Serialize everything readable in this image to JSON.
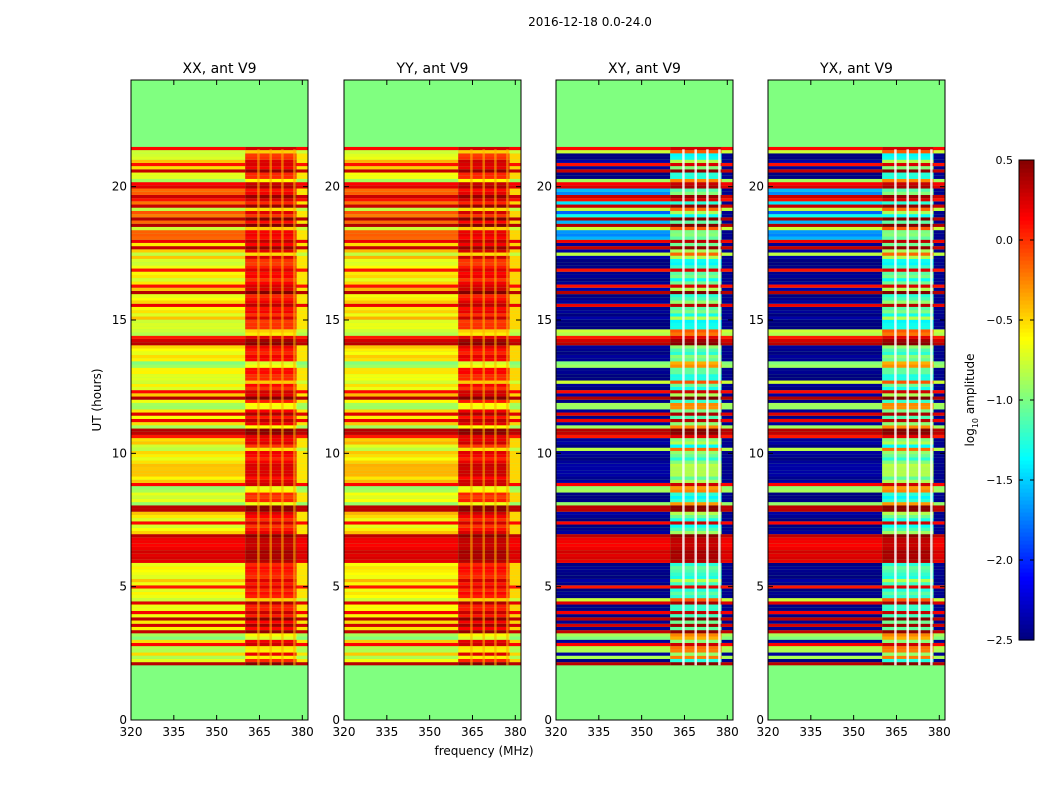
{
  "figure_title": "2016-12-18 0.0-24.0",
  "colorbar": {
    "label_main": "log",
    "label_sub": "10",
    "label_tail": " amplitude",
    "range": [
      -2.5,
      0.5
    ],
    "ticks": [
      0.5,
      0.0,
      -0.5,
      -1.0,
      -1.5,
      -2.0,
      -2.5
    ],
    "tick_labels": [
      "0.5",
      "0.0",
      "−0.5",
      "−1.0",
      "−1.5",
      "−2.0",
      "−2.5"
    ],
    "colormap": "jet"
  },
  "chart_data": {
    "type": "heatmap",
    "xlabel": "frequency (MHz)",
    "ylabel": "UT (hours)",
    "xlim": [
      320,
      382
    ],
    "ylim": [
      0,
      24
    ],
    "xticks": [
      320,
      335,
      350,
      365,
      380
    ],
    "yticks": [
      0,
      5,
      10,
      15,
      20
    ],
    "data_span_hours": [
      2.05,
      21.4
    ],
    "fill_value": -1.0,
    "panels": [
      {
        "title": "XX, ant V9",
        "pol": "XX",
        "base_level": -0.6,
        "band_levels": [
          -0.05,
          0.25
        ],
        "gap_levels": [
          -1.0,
          -0.75
        ]
      },
      {
        "title": "YY, ant V9",
        "pol": "YY",
        "base_level": -0.55,
        "band_levels": [
          -0.05,
          0.3
        ],
        "gap_levels": [
          -1.0,
          -0.75
        ]
      },
      {
        "title": "XY, ant V9",
        "pol": "XY",
        "base_level": -2.45,
        "band_levels": [
          -1.4,
          -0.8
        ],
        "gap_levels": [
          -1.0,
          -0.4
        ]
      },
      {
        "title": "YX, ant V9",
        "pol": "YX",
        "base_level": -2.45,
        "band_levels": [
          -1.4,
          -0.8
        ],
        "gap_levels": [
          -1.0,
          -0.4
        ]
      }
    ],
    "bright_band_mhz": [
      360,
      378
    ],
    "flagged_hours": [
      [
        2.0,
        2.1
      ],
      [
        6.1,
        6.8
      ],
      [
        16.1,
        16.3
      ],
      [
        17.8,
        18.0
      ],
      [
        21.3,
        21.45
      ]
    ]
  }
}
